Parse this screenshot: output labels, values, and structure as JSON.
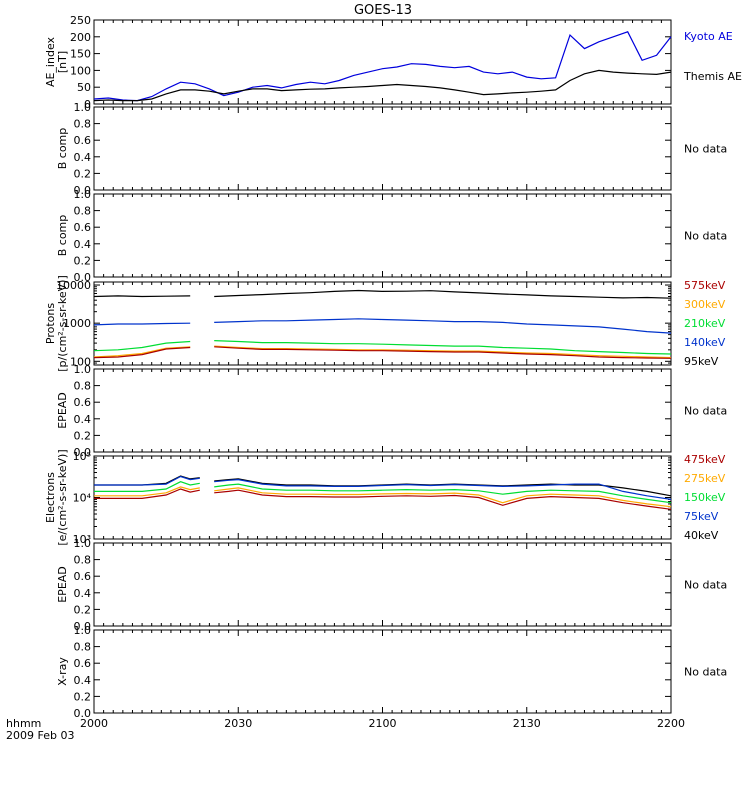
{
  "title": "GOES-13",
  "time_axis": {
    "row1": "hhmm",
    "row2": "2009 Feb 03",
    "ticks": [
      "2000",
      "2030",
      "2100",
      "2130",
      "2200"
    ]
  },
  "colors": {
    "kyoto": "#0000dd",
    "themis": "#000000",
    "p575": "#aa0000",
    "p300": "#ffaa00",
    "p210": "#00dd33",
    "p140": "#0033cc",
    "p95": "#000000"
  },
  "chart_data": [
    {
      "id": "ae",
      "type": "line",
      "ylabel": [
        "AE_index",
        "[nT]"
      ],
      "ylim": [
        0,
        250
      ],
      "scale": "linear",
      "yticks": [
        0,
        50,
        100,
        150,
        200,
        250
      ],
      "ytick_labels": [
        "0",
        "50",
        "100",
        "150",
        "200",
        "250"
      ],
      "x_minutes": [
        0,
        3,
        6,
        9,
        12,
        15,
        18,
        21,
        24,
        27,
        30,
        33,
        36,
        39,
        42,
        45,
        48,
        51,
        54,
        57,
        60,
        63,
        66,
        69,
        72,
        75,
        78,
        81,
        84,
        87,
        90,
        93,
        96,
        99,
        102,
        105,
        108,
        111,
        114,
        117,
        120
      ],
      "series": [
        {
          "name": "Kyoto AE",
          "color": "#0000dd",
          "values": [
            15,
            18,
            12,
            10,
            22,
            45,
            65,
            60,
            45,
            25,
            35,
            50,
            55,
            48,
            58,
            65,
            60,
            70,
            85,
            95,
            105,
            110,
            120,
            118,
            112,
            108,
            112,
            95,
            90,
            95,
            80,
            75,
            78,
            205,
            165,
            185,
            200,
            215,
            130,
            145,
            200
          ]
        },
        {
          "name": "Themis AE",
          "color": "#000000",
          "values": [
            10,
            12,
            10,
            10,
            15,
            30,
            42,
            42,
            38,
            30,
            38,
            45,
            45,
            40,
            42,
            44,
            45,
            48,
            50,
            52,
            55,
            58,
            55,
            52,
            48,
            42,
            35,
            28,
            30,
            33,
            35,
            38,
            42,
            70,
            90,
            100,
            95,
            92,
            90,
            88,
            95
          ]
        }
      ],
      "legend": [
        "Kyoto AE",
        "Themis AE"
      ]
    },
    {
      "id": "bcomp1",
      "type": "line",
      "ylabel": [
        "B comp"
      ],
      "ylim": [
        0,
        1
      ],
      "scale": "linear",
      "yticks": [
        0,
        0.2,
        0.4,
        0.6,
        0.8,
        1.0
      ],
      "ytick_labels": [
        "0.0",
        "0.2",
        "0.4",
        "0.6",
        "0.8",
        "1.0"
      ],
      "series": [],
      "legend": [],
      "note": "No data"
    },
    {
      "id": "bcomp2",
      "type": "line",
      "ylabel": [
        "B comp"
      ],
      "ylim": [
        0,
        1
      ],
      "scale": "linear",
      "yticks": [
        0,
        0.2,
        0.4,
        0.6,
        0.8,
        1.0
      ],
      "ytick_labels": [
        "0.0",
        "0.2",
        "0.4",
        "0.6",
        "0.8",
        "1.0"
      ],
      "series": [],
      "legend": [],
      "note": "No data"
    },
    {
      "id": "protons",
      "type": "line",
      "ylabel": [
        "Protons",
        "[p/(cm²-s-sr-keV)]"
      ],
      "ylim": [
        80,
        12000
      ],
      "scale": "log",
      "yticks": [
        100,
        1000,
        10000
      ],
      "ytick_labels": [
        "100",
        "1000",
        "10000"
      ],
      "x_minutes": [
        0,
        5,
        10,
        15,
        20,
        25,
        30,
        35,
        40,
        45,
        50,
        55,
        60,
        65,
        70,
        75,
        80,
        85,
        90,
        95,
        100,
        105,
        110,
        115,
        120
      ],
      "gap": [
        23.5,
        24.5
      ],
      "series": [
        {
          "name": "95keV",
          "color": "#000000",
          "values": [
            5000,
            5200,
            5000,
            5100,
            5200,
            5000,
            5300,
            5600,
            6000,
            6300,
            6800,
            7200,
            6800,
            6900,
            7100,
            6600,
            6200,
            5800,
            5500,
            5200,
            5000,
            4800,
            4600,
            4700,
            4500
          ]
        },
        {
          "name": "140keV",
          "color": "#0033cc",
          "values": [
            900,
            950,
            950,
            980,
            1000,
            1050,
            1100,
            1150,
            1150,
            1200,
            1250,
            1300,
            1250,
            1200,
            1150,
            1100,
            1100,
            1050,
            950,
            900,
            850,
            800,
            700,
            600,
            550
          ]
        },
        {
          "name": "210keV",
          "color": "#00dd33",
          "values": [
            190,
            200,
            230,
            300,
            330,
            350,
            330,
            310,
            310,
            300,
            290,
            290,
            280,
            270,
            260,
            250,
            250,
            230,
            220,
            210,
            190,
            180,
            170,
            160,
            155
          ]
        },
        {
          "name": "300keV",
          "color": "#ffaa00",
          "values": [
            130,
            140,
            160,
            220,
            240,
            250,
            230,
            215,
            215,
            210,
            205,
            200,
            200,
            195,
            190,
            185,
            185,
            175,
            165,
            160,
            150,
            140,
            135,
            130,
            125
          ]
        },
        {
          "name": "575keV",
          "color": "#aa0000",
          "values": [
            125,
            130,
            150,
            210,
            230,
            240,
            220,
            205,
            205,
            200,
            195,
            190,
            190,
            185,
            180,
            175,
            175,
            165,
            155,
            150,
            140,
            130,
            125,
            122,
            120
          ]
        }
      ],
      "legend": [
        "575keV",
        "300keV",
        "210keV",
        "140keV",
        "95keV"
      ]
    },
    {
      "id": "epead1",
      "type": "line",
      "ylabel": [
        "EPEAD"
      ],
      "ylim": [
        0,
        1
      ],
      "scale": "linear",
      "yticks": [
        0,
        0.2,
        0.4,
        0.6,
        0.8,
        1.0
      ],
      "ytick_labels": [
        "0.0",
        "0.2",
        "0.4",
        "0.6",
        "0.8",
        "1.0"
      ],
      "series": [],
      "legend": [],
      "note": "No data"
    },
    {
      "id": "electrons",
      "type": "line",
      "ylabel": [
        "Electrons",
        "[e/(cm²-s-sr-keV)]"
      ],
      "ylim": [
        1000,
        100000
      ],
      "scale": "log",
      "yticks": [
        1000,
        10000,
        100000
      ],
      "ytick_labels": [
        "10³",
        "10⁴",
        "10⁵"
      ],
      "x_minutes": [
        0,
        5,
        10,
        15,
        18,
        20,
        22,
        25,
        28,
        30,
        35,
        40,
        45,
        50,
        55,
        60,
        65,
        70,
        75,
        80,
        85,
        90,
        95,
        100,
        105,
        110,
        115,
        120
      ],
      "gap": [
        23.5,
        24.5
      ],
      "series": [
        {
          "name": "40keV",
          "color": "#000000",
          "values": [
            20000,
            20000,
            20000,
            22000,
            33000,
            28000,
            30000,
            25000,
            27000,
            28000,
            22000,
            20000,
            20000,
            19000,
            19000,
            20000,
            21000,
            20000,
            21000,
            20000,
            19000,
            20000,
            21000,
            20000,
            20000,
            17000,
            14000,
            11000
          ]
        },
        {
          "name": "75keV",
          "color": "#0033cc",
          "values": [
            20000,
            20000,
            20000,
            21000,
            32000,
            27000,
            29000,
            24000,
            26000,
            27000,
            21000,
            19000,
            19000,
            18500,
            18500,
            19500,
            20500,
            19500,
            20500,
            19500,
            18500,
            19000,
            20000,
            21000,
            21000,
            14000,
            11000,
            9000
          ]
        },
        {
          "name": "150keV",
          "color": "#00dd33",
          "values": [
            14000,
            14000,
            14000,
            16000,
            24000,
            20000,
            22000,
            18000,
            20000,
            21000,
            16000,
            15000,
            15000,
            14500,
            14500,
            15000,
            15500,
            15000,
            15500,
            14500,
            12000,
            14000,
            15000,
            14500,
            14000,
            11000,
            9000,
            7500
          ]
        },
        {
          "name": "275keV",
          "color": "#ffaa00",
          "values": [
            11000,
            11000,
            11000,
            13000,
            18000,
            15500,
            17000,
            14500,
            16000,
            17000,
            13000,
            12000,
            12000,
            11800,
            11800,
            12200,
            12500,
            12200,
            12800,
            11500,
            7500,
            11000,
            12000,
            11500,
            11000,
            8500,
            7000,
            6000
          ]
        },
        {
          "name": "475keV",
          "color": "#aa0000",
          "values": [
            9500,
            9500,
            9500,
            11500,
            16000,
            13500,
            15000,
            13000,
            14000,
            15000,
            11500,
            10500,
            10500,
            10300,
            10300,
            10700,
            11000,
            10700,
            11200,
            10000,
            6500,
            9500,
            10500,
            10000,
            9500,
            7500,
            6200,
            5200
          ]
        }
      ],
      "legend": [
        "475keV",
        "275keV",
        "150keV",
        "75keV",
        "40keV"
      ]
    },
    {
      "id": "epead2",
      "type": "line",
      "ylabel": [
        "EPEAD"
      ],
      "ylim": [
        0,
        1
      ],
      "scale": "linear",
      "yticks": [
        0,
        0.2,
        0.4,
        0.6,
        0.8,
        1.0
      ],
      "ytick_labels": [
        "0.0",
        "0.2",
        "0.4",
        "0.6",
        "0.8",
        "1.0"
      ],
      "series": [],
      "legend": [],
      "note": "No data"
    },
    {
      "id": "xray",
      "type": "line",
      "ylabel": [
        "X-ray"
      ],
      "ylim": [
        0,
        1
      ],
      "scale": "linear",
      "yticks": [
        0,
        0.2,
        0.4,
        0.6,
        0.8,
        1.0
      ],
      "ytick_labels": [
        "0.0",
        "0.2",
        "0.4",
        "0.6",
        "0.8",
        "1.0"
      ],
      "series": [],
      "legend": [],
      "note": "No data"
    }
  ]
}
